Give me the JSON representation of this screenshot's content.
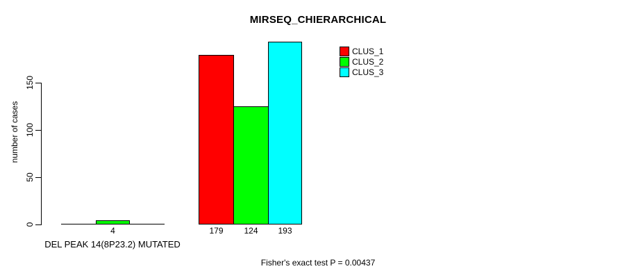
{
  "chart_data": {
    "type": "bar",
    "title": "MIRSEQ_CHIERARCHICAL",
    "ylabel": "number of cases",
    "xlabel": "",
    "ylim": [
      0,
      150
    ],
    "yticks": [
      "0",
      "50",
      "100",
      "150"
    ],
    "grid": false,
    "legend_position": "top-right",
    "series": [
      {
        "name": "CLUS_1",
        "color": "#ff0000"
      },
      {
        "name": "CLUS_2",
        "color": "#00ff00"
      },
      {
        "name": "CLUS_3",
        "color": "#00ffff"
      }
    ],
    "groups": [
      {
        "label": "DEL PEAK 14(8P23.2) MUTATED",
        "values": [
          0,
          4,
          0
        ],
        "bar_labels": [
          "",
          "4",
          ""
        ]
      },
      {
        "label": "",
        "values": [
          179,
          124,
          193
        ],
        "bar_labels": [
          "179",
          "124",
          "193"
        ]
      }
    ],
    "annotation": "Fisher's exact test P = 0.00437"
  }
}
